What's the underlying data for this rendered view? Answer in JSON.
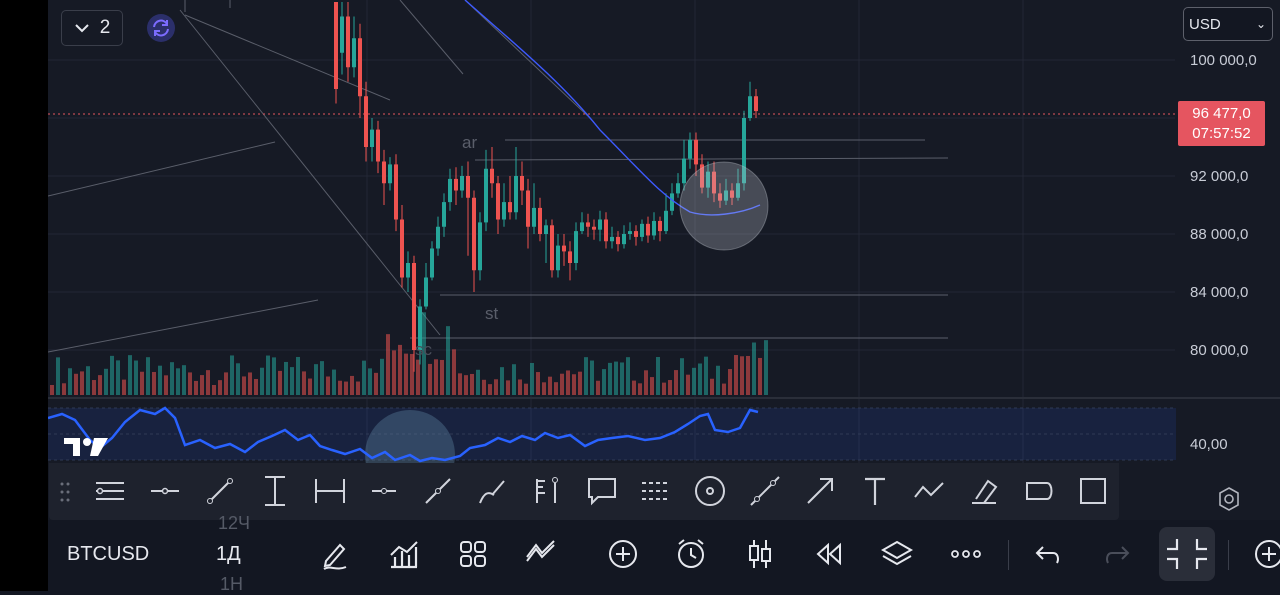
{
  "legend": {
    "count": "2"
  },
  "currency": {
    "selected": "USD"
  },
  "price_axis": {
    "labels": [
      "100 000,0",
      "92 000,0",
      "88 000,0",
      "84 000,0",
      "80 000,0"
    ],
    "current_price": "96 477,0",
    "countdown": "07:57:52"
  },
  "chart_annotations": {
    "ar": "ar",
    "st": "st",
    "sc": "sc"
  },
  "oscillator": {
    "value": "40,00"
  },
  "bottom_bar": {
    "symbol": "BTCUSD",
    "interval": "1Д",
    "interval_above": "12Ч",
    "interval_below": "1Н"
  },
  "colors": {
    "up": "#26a69a",
    "down": "#ef5350",
    "ma": "#3d5afe",
    "oscillator": "#2962ff",
    "price_tag": "#e55560"
  },
  "drawing_tools": [
    "horizontal-ray-icon",
    "horizontal-line-icon",
    "trend-line-icon",
    "vertical-range-icon",
    "date-range-icon",
    "cross-line-icon",
    "ray-icon",
    "brush-icon",
    "anchor-icon",
    "callout-icon",
    "parallel-channel-icon",
    "circle-icon",
    "extended-line-icon",
    "arrow-icon",
    "text-icon",
    "path-icon",
    "highlighter-icon",
    "shape-icon",
    "rectangle-icon"
  ],
  "chart_data": {
    "type": "candlestick",
    "symbol": "BTCUSD",
    "interval": "1Д",
    "currency": "USD",
    "y_ticks": [
      100000,
      92000,
      88000,
      84000,
      80000
    ],
    "ylim": [
      76800,
      104000
    ],
    "last_price": 96477,
    "moving_average": true,
    "volume": true,
    "oscillator_level": 40,
    "candles": [
      [
        104000,
        98000,
        100500,
        97000
      ],
      [
        100500,
        103000,
        104000,
        99000
      ],
      [
        103000,
        99500,
        104000,
        98500
      ],
      [
        99500,
        101500,
        103000,
        98800
      ],
      [
        101500,
        97500,
        102500,
        96000
      ],
      [
        97500,
        94000,
        98500,
        93000
      ],
      [
        94000,
        95200,
        96000,
        93000
      ],
      [
        95200,
        93000,
        95800,
        92200
      ],
      [
        93000,
        91500,
        93800,
        90000
      ],
      [
        91500,
        92800,
        93300,
        91000
      ],
      [
        92800,
        89000,
        93500,
        88200
      ],
      [
        89000,
        85000,
        90000,
        84300
      ],
      [
        85000,
        86000,
        86800,
        84000
      ],
      [
        86000,
        80000,
        86500,
        78500
      ],
      [
        80000,
        83000,
        83500,
        79000
      ],
      [
        83000,
        85000,
        86000,
        82800
      ],
      [
        85000,
        87000,
        87500,
        84800
      ],
      [
        87000,
        88500,
        89200,
        86500
      ],
      [
        88500,
        90200,
        90800,
        87800
      ],
      [
        90200,
        91800,
        92500,
        89600
      ],
      [
        91800,
        91000,
        92600,
        90000
      ],
      [
        91000,
        92000,
        92700,
        90500
      ],
      [
        92000,
        90500,
        93000,
        86500
      ],
      [
        90500,
        85500,
        91000,
        84000
      ],
      [
        85500,
        88800,
        89500,
        84800
      ],
      [
        88800,
        92500,
        93800,
        88200
      ],
      [
        92500,
        91500,
        94000,
        90500
      ],
      [
        91500,
        89000,
        92000,
        88000
      ],
      [
        89000,
        90200,
        91500,
        88500
      ],
      [
        90200,
        89500,
        92000,
        89000
      ],
      [
        89500,
        92000,
        94000,
        89000
      ],
      [
        92000,
        91000,
        93000,
        90000
      ],
      [
        91000,
        88500,
        91800,
        87000
      ],
      [
        88500,
        89800,
        91500,
        88000
      ],
      [
        89800,
        88000,
        90500,
        87500
      ],
      [
        88000,
        88600,
        89000,
        86000
      ],
      [
        88600,
        85500,
        89000,
        85000
      ],
      [
        85500,
        87200,
        88000,
        85000
      ],
      [
        87200,
        86800,
        88000,
        85800
      ],
      [
        86800,
        86000,
        87500,
        84800
      ],
      [
        86000,
        88200,
        88800,
        85500
      ],
      [
        88200,
        88800,
        89500,
        88000
      ],
      [
        88800,
        88500,
        89400,
        87800
      ],
      [
        88500,
        88300,
        89000,
        87600
      ],
      [
        88300,
        89000,
        89600,
        87500
      ],
      [
        89000,
        87500,
        89500,
        87000
      ],
      [
        87500,
        87800,
        88500,
        87000
      ],
      [
        87800,
        87300,
        88200,
        86800
      ],
      [
        87300,
        88000,
        88600,
        87000
      ],
      [
        88000,
        88200,
        88800,
        87600
      ],
      [
        88200,
        87800,
        88600,
        87200
      ],
      [
        87800,
        88700,
        89000,
        87500
      ],
      [
        88700,
        87900,
        89200,
        87400
      ],
      [
        87900,
        88900,
        89500,
        87600
      ],
      [
        88900,
        88200,
        89200,
        87500
      ],
      [
        88200,
        89600,
        90800,
        88000
      ],
      [
        89600,
        90800,
        91500,
        89300
      ],
      [
        90800,
        91500,
        92200,
        90500
      ],
      [
        91500,
        93200,
        94500,
        91000
      ],
      [
        93200,
        94500,
        95000,
        92500
      ],
      [
        94500,
        92800,
        95000,
        92000
      ],
      [
        92800,
        91200,
        93500,
        90800
      ],
      [
        91200,
        92300,
        93000,
        90500
      ],
      [
        92300,
        90800,
        93000,
        90200
      ],
      [
        90800,
        90300,
        91500,
        89800
      ],
      [
        90300,
        91000,
        91800,
        90000
      ],
      [
        91000,
        90500,
        91500,
        90000
      ],
      [
        90500,
        91500,
        92500,
        90300
      ],
      [
        91500,
        96000,
        96500,
        91000
      ],
      [
        96000,
        97500,
        98500,
        95800
      ],
      [
        97500,
        96477,
        98000,
        96000
      ]
    ]
  }
}
